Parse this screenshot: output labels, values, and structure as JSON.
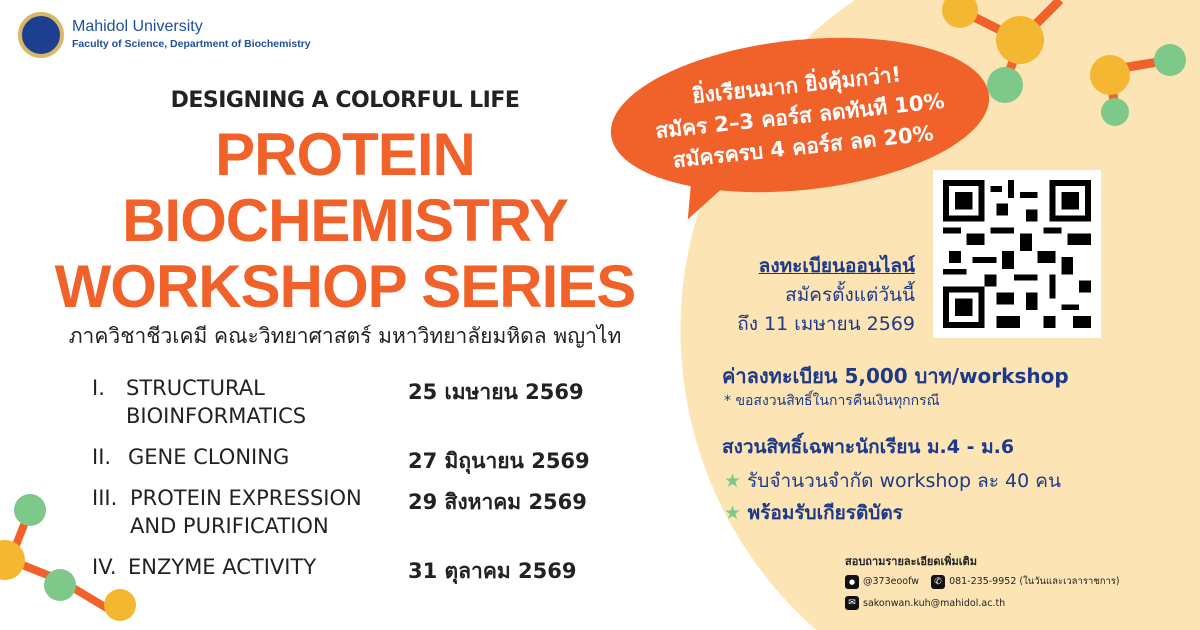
{
  "header": {
    "university": "Mahidol University",
    "faculty": "Faculty of Science, Department of Biochemistry"
  },
  "title": {
    "subtitle": "DESIGNING A COLORFUL LIFE",
    "line1": "PROTEIN",
    "line2": "BIOCHEMISTRY",
    "line3": "WORKSHOP SERIES",
    "department_th": "ภาควิชาชีวเคมี คณะวิทยาศาสตร์ มหาวิทยาลัยมหิดล พญาไท"
  },
  "workshops": [
    {
      "num": "I.",
      "name1": "STRUCTURAL",
      "name2": "BIOINFORMATICS",
      "date": "25 เมษายน 2569"
    },
    {
      "num": "II.",
      "name1": "GENE CLONING",
      "name2": "",
      "date": "27 มิถุนายน 2569"
    },
    {
      "num": "III.",
      "name1": "PROTEIN EXPRESSION",
      "name2": "AND PURIFICATION",
      "date": "29 สิงหาคม 2569"
    },
    {
      "num": "IV.",
      "name1": "ENZYME ACTIVITY",
      "name2": "",
      "date": "31 ตุลาคม 2569"
    }
  ],
  "promo": {
    "line1": "ยิ่งเรียนมาก ยิ่งคุ้มกว่า!",
    "line2": "สมัคร 2–3 คอร์ส ลดทันที 10%",
    "line3": "สมัครครบ 4 คอร์ส ลด 20%"
  },
  "registration": {
    "title": "ลงทะเบียนออนไลน์",
    "line1": "สมัครตั้งแต่วันนี้",
    "line2": "ถึง 11 เมษายน 2569"
  },
  "fee": {
    "title": "ค่าลงทะเบียน 5,000 บาท/workshop",
    "note": "* ขอสงวนสิทธิ์ในการคืนเงินทุกกรณี"
  },
  "students": {
    "title": "สงวนสิทธิ์เฉพาะนักเรียน ม.4 - ม.6",
    "items": [
      "รับจำนวนจำกัด workshop ละ 40 คน",
      "พร้อมรับเกียรติบัตร"
    ]
  },
  "contact": {
    "title": "สอบถามรายละเอียดเพิ่มเติม",
    "line": "@373eoofw",
    "phone": "081-235-9952 (ในวันและเวลาราชการ)",
    "email": "sakonwan.kuh@mahidol.ac.th"
  },
  "colors": {
    "orange": "#f0622a",
    "navy": "#1d3a8a",
    "cream": "#fde4b4",
    "green": "#7ec88a",
    "yellow": "#f4b731"
  }
}
